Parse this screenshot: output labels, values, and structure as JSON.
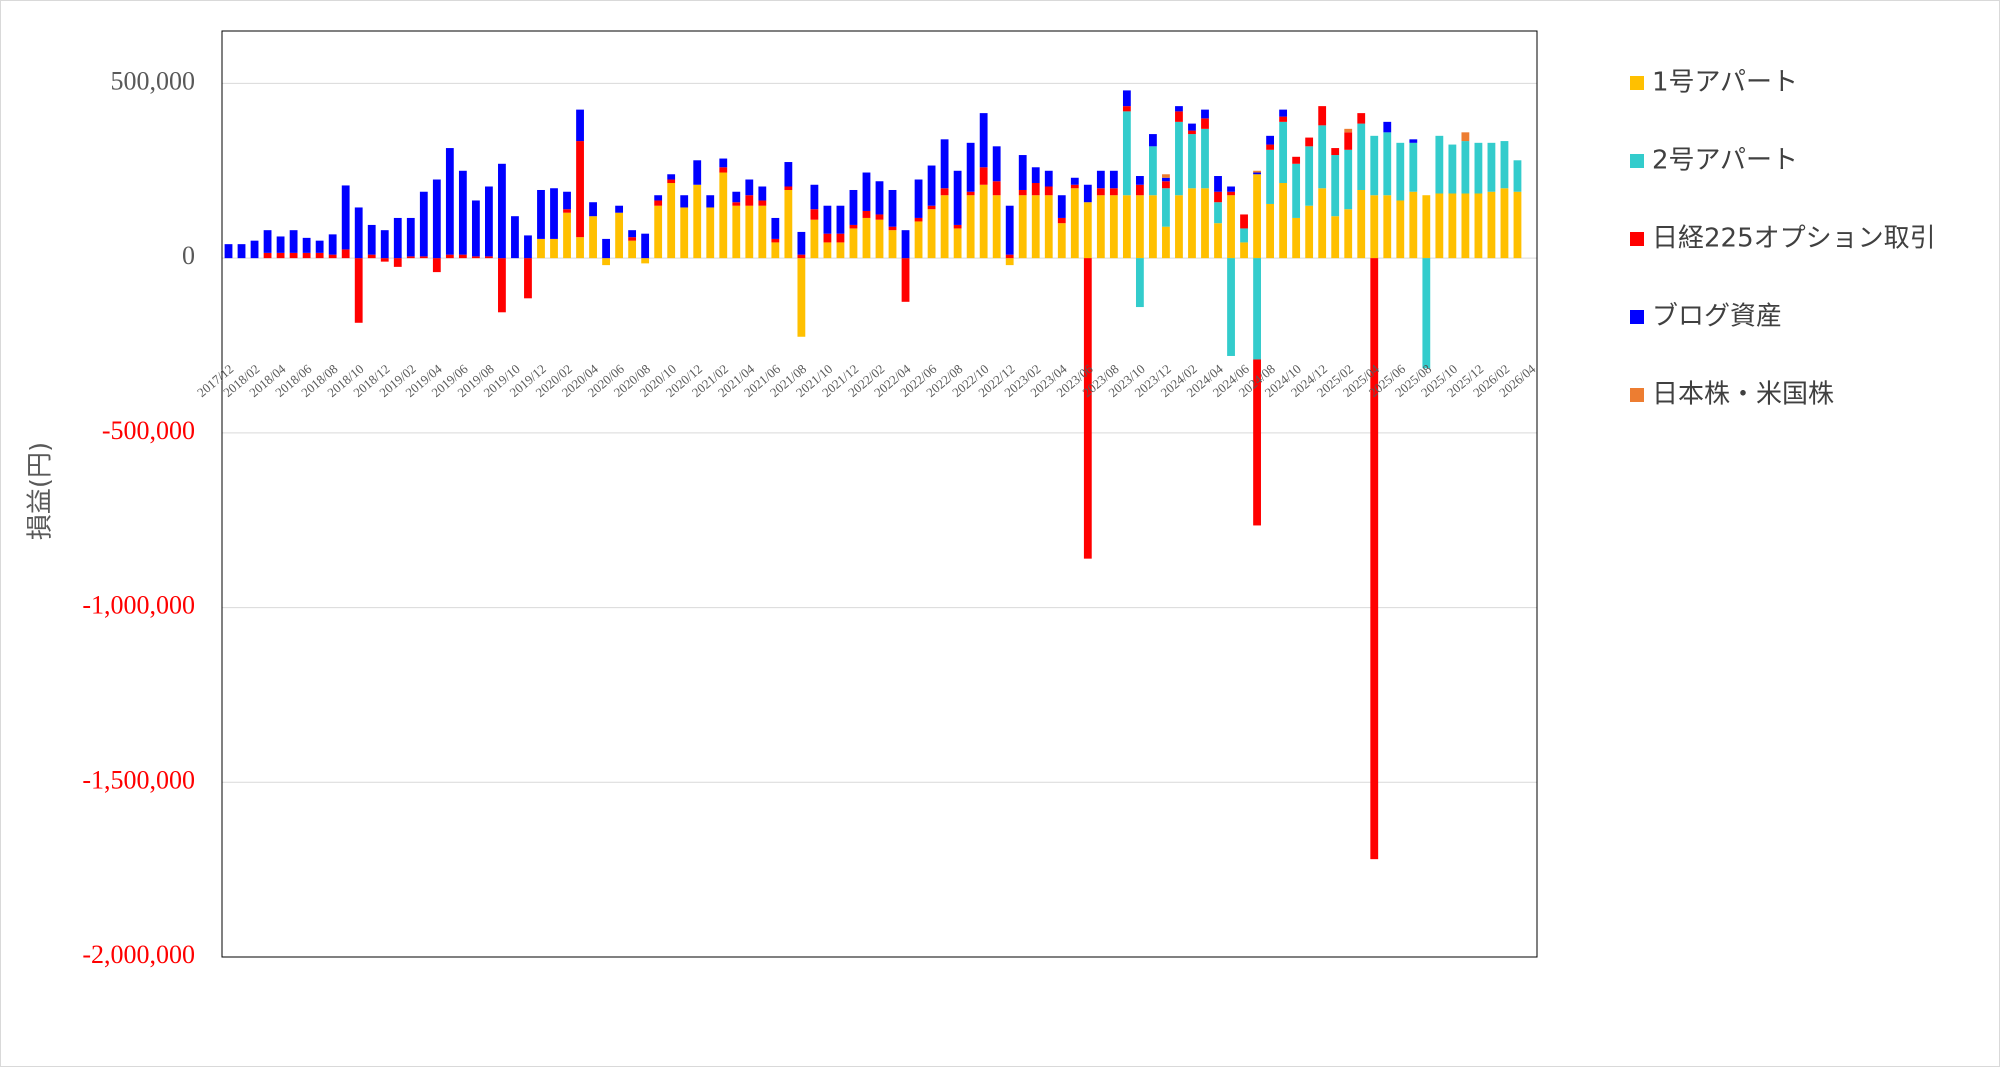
{
  "chart_data": {
    "type": "stacked_bar",
    "y_axis_label": "損益(円)",
    "categories": [
      "2017/12",
      null,
      "2018/02",
      null,
      "2018/04",
      null,
      "2018/06",
      null,
      "2018/08",
      null,
      "2018/10",
      null,
      "2018/12",
      null,
      "2019/02",
      null,
      "2019/04",
      null,
      "2019/06",
      null,
      "2019/08",
      null,
      "2019/10",
      null,
      "2019/12",
      null,
      "2020/02",
      null,
      "2020/04",
      null,
      "2020/06",
      null,
      "2020/08",
      null,
      "2020/10",
      null,
      "2020/12",
      null,
      "2021/02",
      null,
      "2021/04",
      null,
      "2021/06",
      null,
      "2021/08",
      null,
      "2021/10",
      null,
      "2021/12",
      null,
      "2022/02",
      null,
      "2022/04",
      null,
      "2022/06",
      null,
      "2022/08",
      null,
      "2022/10",
      null,
      "2022/12",
      null,
      "2023/02",
      null,
      "2023/04",
      null,
      "2023/06",
      null,
      "2023/08",
      null,
      "2023/10",
      null,
      "2023/12",
      null,
      "2024/02",
      null,
      "2024/04",
      null,
      "2024/06",
      null,
      "2024/08",
      null,
      "2024/10",
      null,
      "2024/12",
      null,
      "2025/02",
      null,
      "2025/04",
      null,
      "2025/06",
      null,
      "2025/08",
      null,
      "2025/10",
      null,
      "2025/12",
      null,
      "2026/02",
      null,
      "2026/04"
    ],
    "series": [
      {
        "name": "1号アパート",
        "color": "#FFC000",
        "values": [
          0,
          0,
          0,
          0,
          0,
          0,
          0,
          0,
          0,
          0,
          0,
          0,
          0,
          0,
          0,
          0,
          0,
          0,
          0,
          0,
          0,
          0,
          0,
          0,
          55000,
          55000,
          130000,
          60000,
          120000,
          -20000,
          130000,
          50000,
          -15000,
          150000,
          215000,
          145000,
          210000,
          145000,
          245000,
          150000,
          150000,
          150000,
          45000,
          195000,
          -225000,
          110000,
          45000,
          45000,
          85000,
          115000,
          110000,
          80000,
          0,
          105000,
          140000,
          180000,
          85000,
          180000,
          210000,
          180000,
          -20000,
          180000,
          180000,
          180000,
          100000,
          200000,
          160000,
          180000,
          180000,
          180000,
          180000,
          180000,
          90000,
          180000,
          200000,
          200000,
          100000,
          180000,
          45000,
          240000,
          155000,
          215000,
          115000,
          150000,
          200000,
          120000,
          140000,
          195000,
          180000,
          180000,
          165000,
          190000,
          180000,
          185000,
          185000,
          185000,
          185000,
          190000,
          200000,
          190000,
          0
        ]
      },
      {
        "name": "2号アパート",
        "color": "#33CCCC",
        "values": [
          0,
          0,
          0,
          0,
          0,
          0,
          0,
          0,
          0,
          0,
          0,
          0,
          0,
          0,
          0,
          0,
          0,
          0,
          0,
          0,
          0,
          0,
          0,
          0,
          0,
          0,
          0,
          0,
          0,
          0,
          0,
          0,
          0,
          0,
          0,
          0,
          0,
          0,
          0,
          0,
          0,
          0,
          0,
          0,
          0,
          0,
          0,
          0,
          0,
          0,
          0,
          0,
          0,
          0,
          0,
          0,
          0,
          0,
          0,
          0,
          0,
          0,
          0,
          0,
          0,
          0,
          0,
          0,
          0,
          240000,
          -140000,
          140000,
          110000,
          210000,
          155000,
          170000,
          60000,
          -280000,
          40000,
          -290000,
          155000,
          175000,
          155000,
          170000,
          180000,
          175000,
          170000,
          190000,
          170000,
          180000,
          165000,
          140000,
          -315000,
          165000,
          140000,
          150000,
          145000,
          140000,
          135000,
          90000,
          0
        ]
      },
      {
        "name": "日経225オプション取引",
        "color": "#FF0000",
        "values": [
          0,
          0,
          0,
          15000,
          15000,
          15000,
          15000,
          15000,
          10000,
          25000,
          -185000,
          10000,
          -10000,
          -25000,
          5000,
          5000,
          -40000,
          10000,
          10000,
          5000,
          5000,
          -155000,
          0,
          -115000,
          0,
          0,
          10000,
          275000,
          0,
          0,
          0,
          10000,
          0,
          15000,
          10000,
          0,
          0,
          0,
          15000,
          10000,
          30000,
          15000,
          10000,
          10000,
          10000,
          30000,
          25000,
          25000,
          10000,
          20000,
          15000,
          10000,
          -125000,
          10000,
          10000,
          20000,
          10000,
          10000,
          50000,
          40000,
          10000,
          15000,
          35000,
          25000,
          15000,
          10000,
          -860000,
          20000,
          20000,
          15000,
          30000,
          0,
          20000,
          30000,
          10000,
          30000,
          30000,
          10000,
          40000,
          -475000,
          15000,
          15000,
          20000,
          25000,
          55000,
          20000,
          50000,
          30000,
          -1720000,
          0,
          0,
          0,
          0,
          0,
          0,
          0,
          0,
          0,
          0,
          0,
          0
        ]
      },
      {
        "name": "ブログ資産",
        "color": "#0000FF",
        "values": [
          40000,
          40000,
          50000,
          65000,
          47000,
          65000,
          43000,
          35000,
          58000,
          183000,
          145000,
          85000,
          80000,
          115000,
          110000,
          185000,
          225000,
          305000,
          240000,
          160000,
          200000,
          270000,
          120000,
          65000,
          140000,
          145000,
          50000,
          90000,
          40000,
          55000,
          20000,
          20000,
          70000,
          15000,
          15000,
          35000,
          70000,
          35000,
          25000,
          30000,
          45000,
          40000,
          60000,
          70000,
          65000,
          70000,
          80000,
          80000,
          100000,
          110000,
          95000,
          105000,
          80000,
          110000,
          115000,
          140000,
          155000,
          140000,
          155000,
          100000,
          140000,
          100000,
          45000,
          45000,
          65000,
          20000,
          50000,
          50000,
          50000,
          45000,
          25000,
          35000,
          10000,
          15000,
          20000,
          25000,
          45000,
          15000,
          0,
          5000,
          25000,
          20000,
          0,
          0,
          0,
          0,
          0,
          0,
          0,
          30000,
          0,
          10000,
          0,
          0,
          0,
          0,
          0,
          0,
          0,
          0,
          0
        ]
      },
      {
        "name": "日本株・米国株",
        "color": "#ED7D31",
        "values": [
          0,
          0,
          0,
          0,
          0,
          0,
          0,
          0,
          0,
          0,
          0,
          0,
          0,
          0,
          0,
          0,
          0,
          0,
          0,
          0,
          0,
          0,
          0,
          0,
          0,
          0,
          0,
          0,
          0,
          0,
          0,
          0,
          0,
          0,
          0,
          0,
          0,
          0,
          0,
          0,
          0,
          0,
          0,
          0,
          0,
          0,
          0,
          0,
          0,
          0,
          0,
          0,
          0,
          0,
          0,
          0,
          0,
          0,
          0,
          0,
          0,
          0,
          0,
          0,
          0,
          0,
          0,
          0,
          0,
          0,
          0,
          0,
          10000,
          0,
          0,
          0,
          0,
          0,
          0,
          5000,
          0,
          0,
          0,
          0,
          0,
          0,
          10000,
          0,
          0,
          0,
          0,
          0,
          0,
          0,
          0,
          25000,
          0,
          0,
          0,
          0,
          0
        ]
      }
    ],
    "ylim": [
      -2000000,
      650000
    ],
    "yticks": [
      {
        "value": -2000000,
        "label": "-2,000,000"
      },
      {
        "value": -1500000,
        "label": "-1,500,000"
      },
      {
        "value": -1000000,
        "label": "-1,000,000"
      },
      {
        "value": -500000,
        "label": "-500,000"
      },
      0,
      {
        "value": 500000,
        "label": "500,000"
      }
    ],
    "tick_color": "#595959",
    "negative_tick_color": "#FF0000",
    "grid": true,
    "legend": "right"
  }
}
